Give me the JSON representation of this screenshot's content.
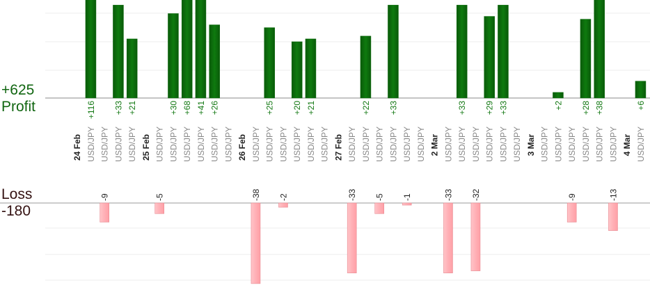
{
  "summary": {
    "profit_total": "+625",
    "profit_label": "Profit",
    "loss_label": "Loss",
    "loss_total": "-180"
  },
  "colors": {
    "profit_bar": "#0b6b0b",
    "profit_text": "#117711",
    "loss_bar": "#ffb3b8",
    "loss_text": "#222222",
    "slot_text": "#888888"
  },
  "chart_data": {
    "type": "bar",
    "title": "",
    "xlabel": "",
    "ylabel": "",
    "grid": true,
    "slot_label": "USD/JPY",
    "profit_ylim": [
      0,
      35
    ],
    "loss_ylim": [
      0,
      35
    ],
    "dates": [
      {
        "slot": 0,
        "label": "24 Feb"
      },
      {
        "slot": 5,
        "label": "25 Feb"
      },
      {
        "slot": 12,
        "label": "26 Feb"
      },
      {
        "slot": 19,
        "label": "27 Feb"
      },
      {
        "slot": 26,
        "label": "2 Mar"
      },
      {
        "slot": 33,
        "label": "3 Mar"
      },
      {
        "slot": 40,
        "label": "4 Mar"
      }
    ],
    "profits": [
      {
        "slot": 1,
        "value": 116,
        "label": "+116"
      },
      {
        "slot": 3,
        "value": 33,
        "label": "+33"
      },
      {
        "slot": 4,
        "value": 21,
        "label": "+21"
      },
      {
        "slot": 7,
        "value": 30,
        "label": "+30"
      },
      {
        "slot": 8,
        "value": 68,
        "label": "+68"
      },
      {
        "slot": 9,
        "value": 41,
        "label": "+41"
      },
      {
        "slot": 10,
        "value": 26,
        "label": "+26"
      },
      {
        "slot": 14,
        "value": 25,
        "label": "+25"
      },
      {
        "slot": 16,
        "value": 20,
        "label": "+20"
      },
      {
        "slot": 17,
        "value": 21,
        "label": "+21"
      },
      {
        "slot": 21,
        "value": 22,
        "label": "+22"
      },
      {
        "slot": 23,
        "value": 33,
        "label": "+33"
      },
      {
        "slot": 28,
        "value": 33,
        "label": "+33"
      },
      {
        "slot": 30,
        "value": 29,
        "label": "+29"
      },
      {
        "slot": 31,
        "value": 33,
        "label": "+33"
      },
      {
        "slot": 35,
        "value": 2,
        "label": "+2"
      },
      {
        "slot": 37,
        "value": 28,
        "label": "+28"
      },
      {
        "slot": 38,
        "value": 38,
        "label": "+38"
      },
      {
        "slot": 41,
        "value": 6,
        "label": "+6"
      }
    ],
    "losses": [
      {
        "slot": 2,
        "value": 9,
        "label": "-9"
      },
      {
        "slot": 6,
        "value": 5,
        "label": "-5"
      },
      {
        "slot": 13,
        "value": 38,
        "label": "-38"
      },
      {
        "slot": 15,
        "value": 2,
        "label": "-2"
      },
      {
        "slot": 20,
        "value": 33,
        "label": "-33"
      },
      {
        "slot": 22,
        "value": 5,
        "label": "-5"
      },
      {
        "slot": 24,
        "value": 1,
        "label": "-1"
      },
      {
        "slot": 27,
        "value": 33,
        "label": "-33"
      },
      {
        "slot": 29,
        "value": 32,
        "label": "-32"
      },
      {
        "slot": 36,
        "value": 9,
        "label": "-9"
      },
      {
        "slot": 39,
        "value": 13,
        "label": "-13"
      }
    ]
  }
}
